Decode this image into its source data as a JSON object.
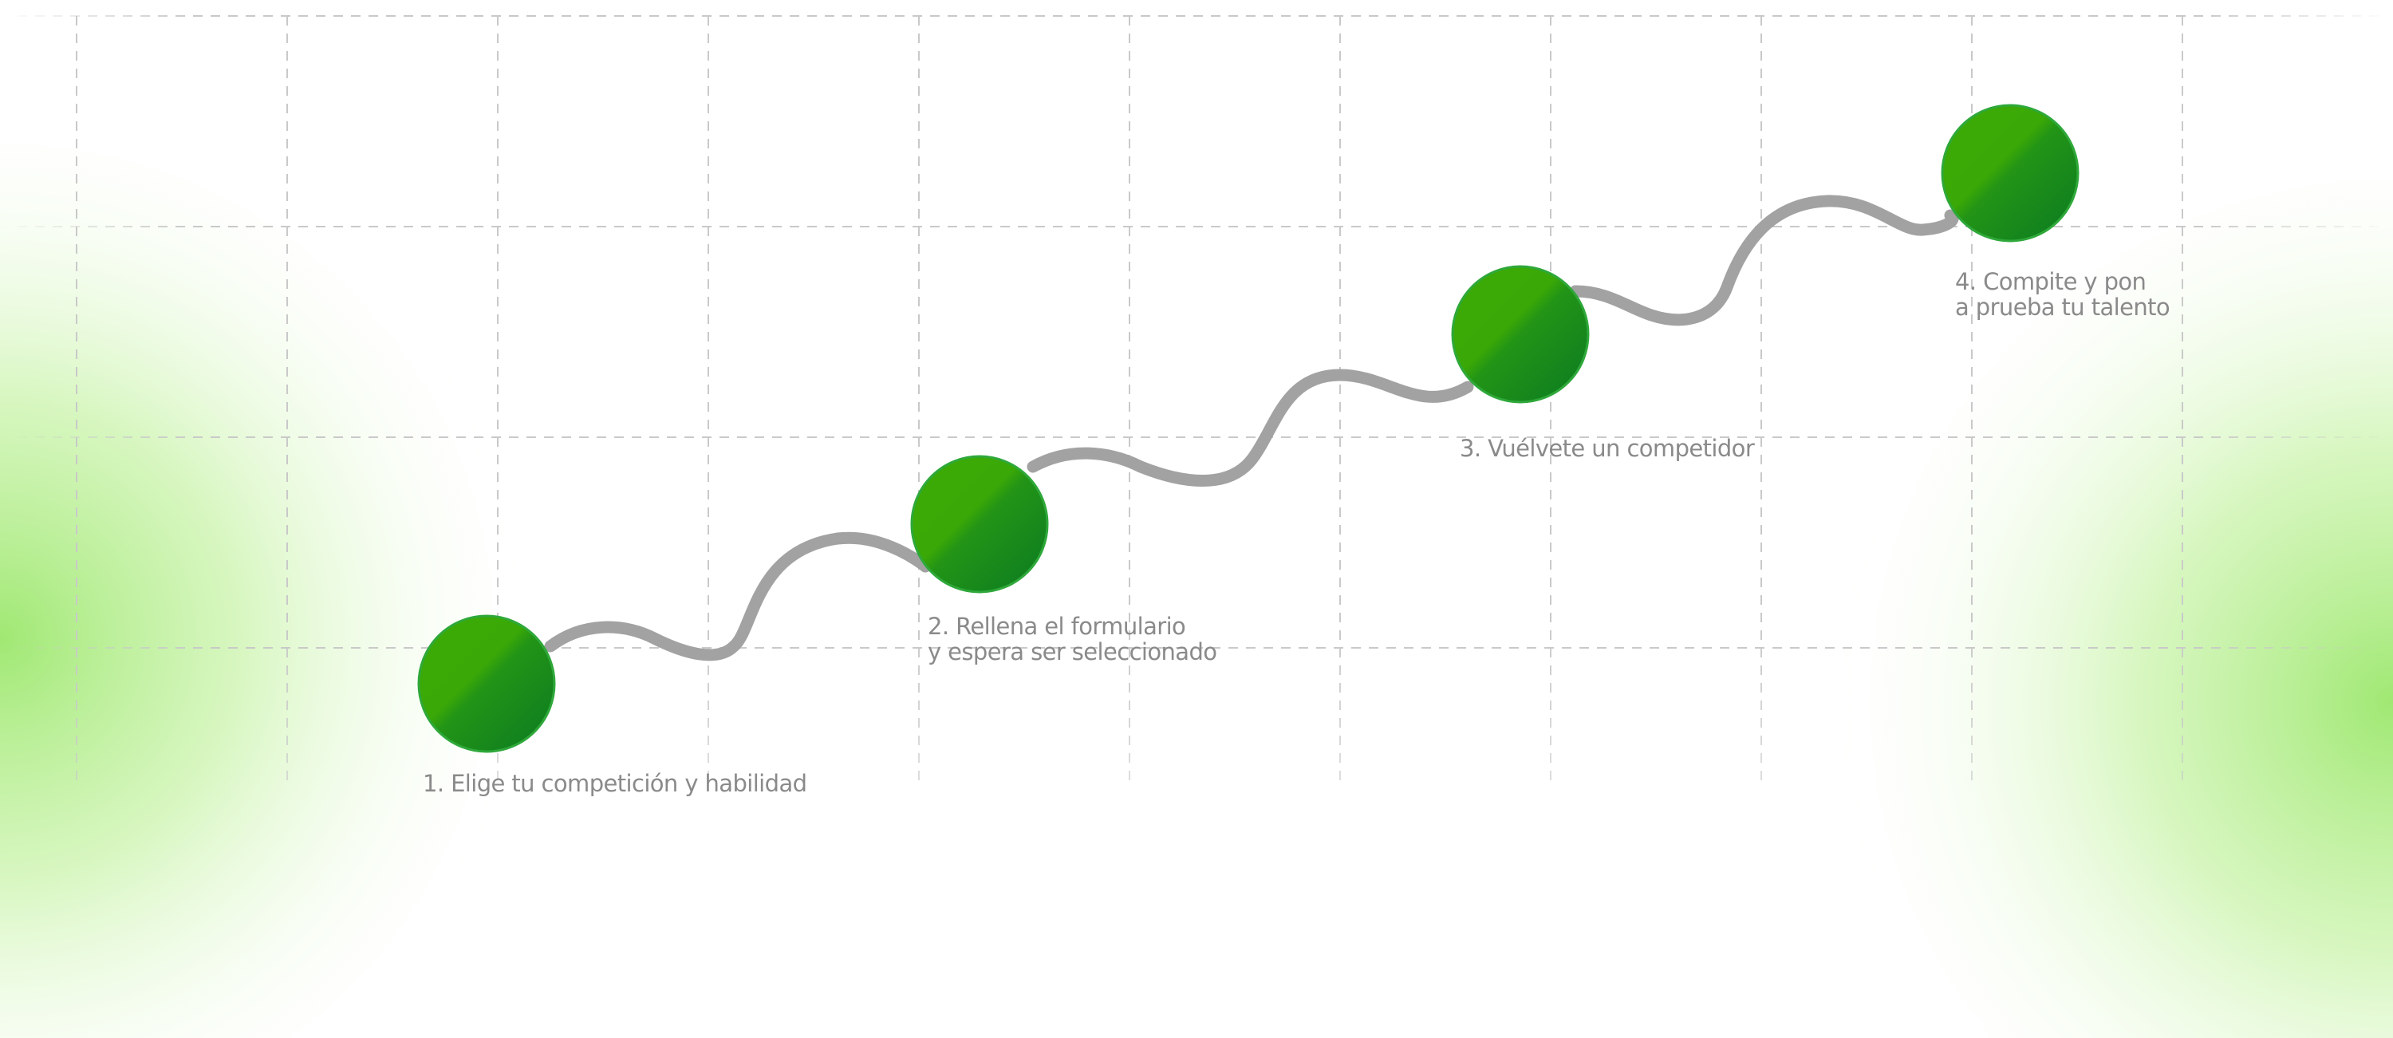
{
  "steps": [
    {
      "lines": [
        "1. Elige tu competición y habilidad"
      ]
    },
    {
      "lines": [
        "2. Rellena el formulario",
        "y espera ser seleccionado"
      ]
    },
    {
      "lines": [
        "3. Vuélvete un competidor"
      ]
    },
    {
      "lines": [
        "4. Compite y pon",
        "a prueba tu talento"
      ]
    }
  ],
  "colors": {
    "node_light": "#3dab05",
    "node_dark": "#0b7a22",
    "node_border": "#2fa83a",
    "path": "#a2a2a2",
    "grid": "#c9c9c9",
    "label": "#8a8a8a",
    "glow": "#8fe45a"
  }
}
